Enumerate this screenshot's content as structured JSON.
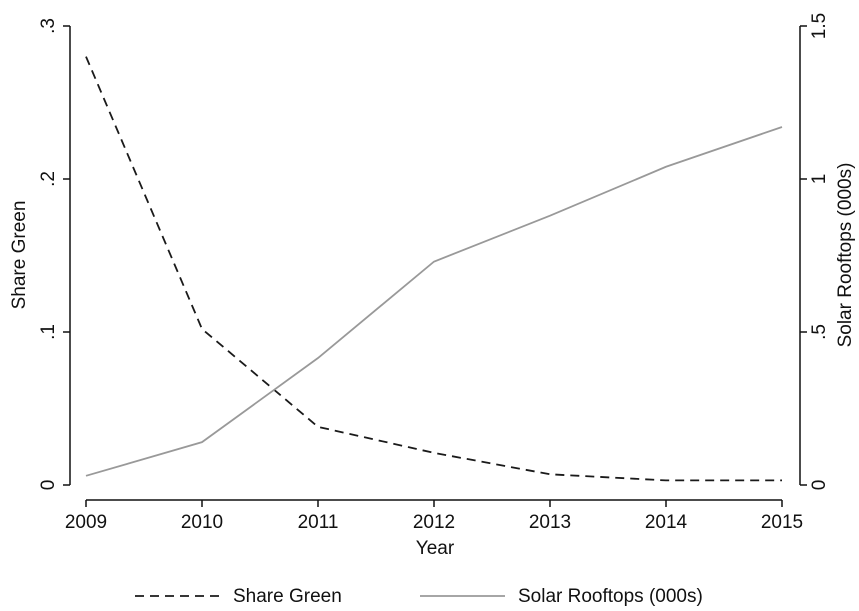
{
  "chart_data": {
    "type": "line",
    "x": [
      2009,
      2010,
      2011,
      2012,
      2013,
      2014,
      2015
    ],
    "xlim": [
      2009,
      2015
    ],
    "xticks": [
      2009,
      2010,
      2011,
      2012,
      2013,
      2014,
      2015
    ],
    "x_label": "Year",
    "y_label": "Share Green",
    "y2_label": "Solar Rooftops (000s)",
    "ylim": [
      0,
      0.3
    ],
    "yticks": [
      0,
      {
        "value": 0.1,
        "label": ".1"
      },
      {
        "value": 0.2,
        "label": ".2"
      },
      {
        "value": 0.3,
        "label": ".3"
      }
    ],
    "y2lim": [
      0,
      1.5
    ],
    "y2ticks": [
      0,
      {
        "value": 0.5,
        "label": ".5"
      },
      1,
      1.5
    ],
    "legend": "bottom",
    "series": [
      {
        "name": "Share Green",
        "color": "#1a1a1a",
        "dash": true,
        "values": [
          0.28,
          0.102,
          0.038,
          0.021,
          0.007,
          0.003,
          0.003
        ]
      },
      {
        "name": "Solar Rooftops (000s)",
        "color": "#999999",
        "dash": false,
        "axis": "y2",
        "values": [
          0.03,
          0.14,
          0.415,
          0.73,
          0.88,
          1.04,
          1.17
        ]
      }
    ]
  }
}
